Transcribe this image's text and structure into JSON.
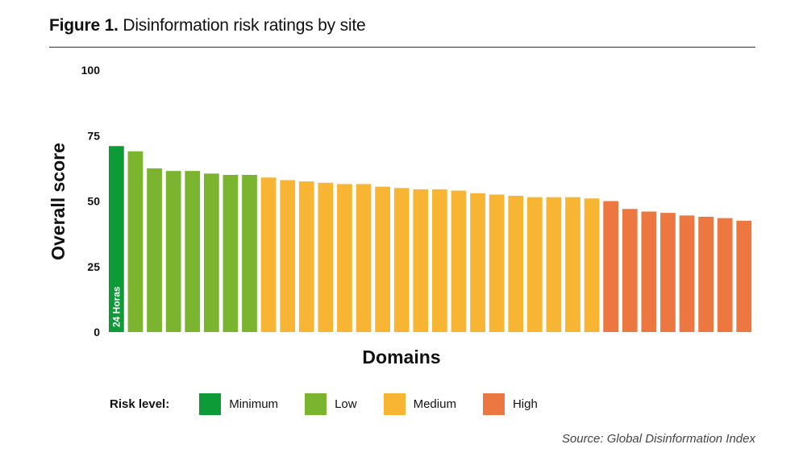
{
  "figure": {
    "label": "Figure 1.",
    "title": "Disinformation risk ratings by site"
  },
  "chart_data": {
    "type": "bar",
    "title": "Figure 1. Disinformation risk ratings by site",
    "xlabel": "Domains",
    "ylabel": "Overall score",
    "ylim": [
      0,
      100
    ],
    "yticks": [
      0,
      25,
      50,
      75,
      100
    ],
    "grid": false,
    "legend_placement": "bottom",
    "bar_annotation": {
      "index": 0,
      "text": "24 Horas"
    },
    "values": [
      71,
      69,
      62.5,
      61.5,
      61.5,
      60.5,
      60,
      60,
      59,
      58,
      57.5,
      57,
      56.5,
      56.5,
      55.5,
      55,
      54.5,
      54.5,
      54,
      53,
      52.5,
      52,
      51.5,
      51.5,
      51.5,
      51,
      50,
      47,
      46,
      45.5,
      44.5,
      44,
      43.5,
      42.5
    ],
    "risk_levels": [
      "Minimum",
      "Low",
      "Low",
      "Low",
      "Low",
      "Low",
      "Low",
      "Low",
      "Medium",
      "Medium",
      "Medium",
      "Medium",
      "Medium",
      "Medium",
      "Medium",
      "Medium",
      "Medium",
      "Medium",
      "Medium",
      "Medium",
      "Medium",
      "Medium",
      "Medium",
      "Medium",
      "Medium",
      "Medium",
      "High",
      "High",
      "High",
      "High",
      "High",
      "High",
      "High",
      "High"
    ]
  },
  "legend": {
    "title": "Risk level:",
    "items": [
      {
        "label": "Minimum",
        "color": "#0c9b37"
      },
      {
        "label": "Low",
        "color": "#7bb52f"
      },
      {
        "label": "Medium",
        "color": "#f7b533"
      },
      {
        "label": "High",
        "color": "#ec7741"
      }
    ]
  },
  "source": "Source: Global Disinformation Index"
}
